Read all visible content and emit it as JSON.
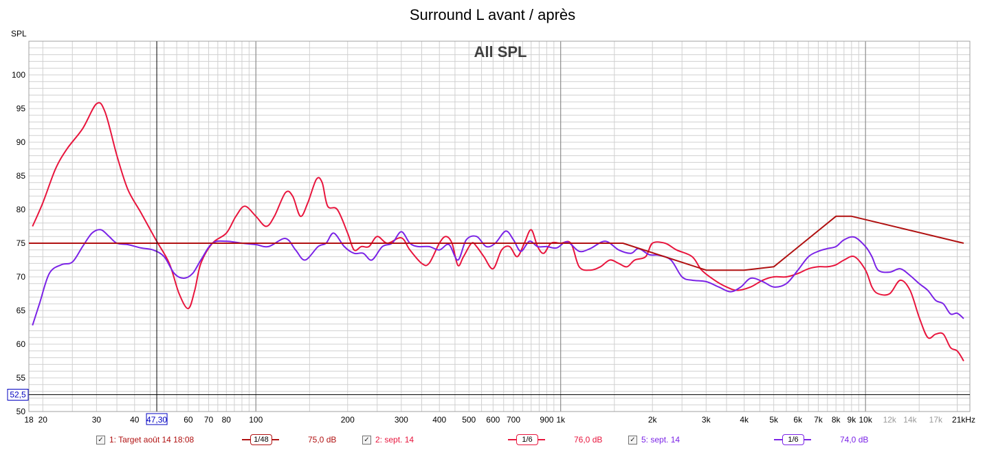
{
  "title": "Surround L avant / après",
  "colors": {
    "target": "#b01010",
    "sept14_red": "#e8143c",
    "sept14_purple": "#7a22e6",
    "grid_major": "#808080",
    "grid_minor": "#d0d0d0",
    "plot_border": "#a0a0a0",
    "cursor_label": "#0000c0"
  },
  "cursor": {
    "x_label": "47,30",
    "y_label": "52,5"
  },
  "legend": [
    {
      "checked": true,
      "label": "1: Target août 14 18:08",
      "smoothing": "1/48",
      "level": "75,0 dB",
      "color": "#b01010"
    },
    {
      "checked": true,
      "label": "2: sept. 14",
      "smoothing": "1/6",
      "level": "76,0 dB",
      "color": "#e8143c"
    },
    {
      "checked": true,
      "label": "5: sept. 14",
      "smoothing": "1/6",
      "level": "74,0 dB",
      "color": "#7a22e6"
    }
  ],
  "chart_data": {
    "type": "line",
    "title": "All SPL",
    "ylabel": "SPL",
    "xlabel": "",
    "x_scale": "log",
    "xlim": [
      18,
      22000
    ],
    "ylim": [
      50,
      105
    ],
    "grid": true,
    "y_ticks": [
      50,
      55,
      60,
      65,
      70,
      75,
      80,
      85,
      90,
      95,
      100
    ],
    "x_ticks": [
      {
        "v": 18,
        "label": "18",
        "minor": false
      },
      {
        "v": 20,
        "label": "20",
        "minor": false
      },
      {
        "v": 30,
        "label": "30",
        "minor": false
      },
      {
        "v": 40,
        "label": "40",
        "minor": false
      },
      {
        "v": 60,
        "label": "60",
        "minor": false
      },
      {
        "v": 70,
        "label": "70",
        "minor": false
      },
      {
        "v": 80,
        "label": "80",
        "minor": false
      },
      {
        "v": 100,
        "label": "100",
        "minor": false
      },
      {
        "v": 200,
        "label": "200",
        "minor": false
      },
      {
        "v": 300,
        "label": "300",
        "minor": false
      },
      {
        "v": 400,
        "label": "400",
        "minor": false
      },
      {
        "v": 500,
        "label": "500",
        "minor": false
      },
      {
        "v": 600,
        "label": "600",
        "minor": false
      },
      {
        "v": 700,
        "label": "700",
        "minor": false
      },
      {
        "v": 900,
        "label": "900",
        "minor": false
      },
      {
        "v": 1000,
        "label": "1k",
        "minor": false
      },
      {
        "v": 2000,
        "label": "2k",
        "minor": false
      },
      {
        "v": 3000,
        "label": "3k",
        "minor": false
      },
      {
        "v": 4000,
        "label": "4k",
        "minor": false
      },
      {
        "v": 5000,
        "label": "5k",
        "minor": false
      },
      {
        "v": 6000,
        "label": "6k",
        "minor": false
      },
      {
        "v": 7000,
        "label": "7k",
        "minor": false
      },
      {
        "v": 8000,
        "label": "8k",
        "minor": false
      },
      {
        "v": 9000,
        "label": "9k",
        "minor": false
      },
      {
        "v": 10000,
        "label": "10k",
        "minor": false
      },
      {
        "v": 12000,
        "label": "12k",
        "minor": true
      },
      {
        "v": 14000,
        "label": "14k",
        "minor": true
      },
      {
        "v": 17000,
        "label": "17k",
        "minor": true
      },
      {
        "v": 21000,
        "label": "21kHz",
        "minor": false
      }
    ],
    "series": [
      {
        "name": "1: Target août 14 18:08",
        "color": "#b01010",
        "points": [
          [
            18,
            75
          ],
          [
            1600,
            75
          ],
          [
            3000,
            71
          ],
          [
            4000,
            71
          ],
          [
            5000,
            71.5
          ],
          [
            8000,
            79
          ],
          [
            9000,
            79
          ],
          [
            21000,
            75
          ]
        ]
      },
      {
        "name": "2: sept. 14",
        "color": "#e8143c",
        "points": [
          [
            18.5,
            77.5
          ],
          [
            20,
            81
          ],
          [
            22,
            86
          ],
          [
            24,
            89
          ],
          [
            27,
            92
          ],
          [
            30,
            95.7
          ],
          [
            32,
            94.5
          ],
          [
            35,
            88
          ],
          [
            38,
            83
          ],
          [
            42,
            79.5
          ],
          [
            47,
            75.5
          ],
          [
            52,
            72
          ],
          [
            56,
            67.5
          ],
          [
            60,
            65.3
          ],
          [
            63,
            68
          ],
          [
            66,
            72
          ],
          [
            72,
            75
          ],
          [
            80,
            76.5
          ],
          [
            86,
            79
          ],
          [
            92,
            80.5
          ],
          [
            100,
            79
          ],
          [
            108,
            77.5
          ],
          [
            115,
            79
          ],
          [
            125,
            82.5
          ],
          [
            132,
            82
          ],
          [
            140,
            79
          ],
          [
            148,
            81
          ],
          [
            158,
            84.5
          ],
          [
            165,
            84
          ],
          [
            172,
            80.5
          ],
          [
            185,
            80
          ],
          [
            200,
            76.5
          ],
          [
            210,
            74
          ],
          [
            222,
            74.5
          ],
          [
            235,
            74.5
          ],
          [
            250,
            76
          ],
          [
            270,
            75
          ],
          [
            300,
            75.8
          ],
          [
            320,
            74
          ],
          [
            350,
            72
          ],
          [
            370,
            72
          ],
          [
            400,
            75
          ],
          [
            420,
            76
          ],
          [
            440,
            75
          ],
          [
            460,
            71.7
          ],
          [
            480,
            73
          ],
          [
            510,
            75
          ],
          [
            530,
            74.5
          ],
          [
            560,
            73
          ],
          [
            600,
            71.2
          ],
          [
            640,
            74
          ],
          [
            680,
            74.5
          ],
          [
            720,
            73
          ],
          [
            760,
            75
          ],
          [
            800,
            77
          ],
          [
            840,
            74.5
          ],
          [
            880,
            73.5
          ],
          [
            930,
            75
          ],
          [
            1000,
            75
          ],
          [
            1080,
            75
          ],
          [
            1150,
            71.5
          ],
          [
            1250,
            71
          ],
          [
            1350,
            71.5
          ],
          [
            1450,
            72.5
          ],
          [
            1550,
            72
          ],
          [
            1650,
            71.5
          ],
          [
            1750,
            72.5
          ],
          [
            1900,
            73
          ],
          [
            2000,
            75
          ],
          [
            2200,
            75
          ],
          [
            2400,
            74
          ],
          [
            2700,
            73
          ],
          [
            2900,
            71
          ],
          [
            3200,
            69.5
          ],
          [
            3500,
            68.5
          ],
          [
            3800,
            68
          ],
          [
            4200,
            68.5
          ],
          [
            4600,
            69.5
          ],
          [
            5000,
            70
          ],
          [
            5500,
            70
          ],
          [
            6000,
            70.5
          ],
          [
            6500,
            71.2
          ],
          [
            7000,
            71.5
          ],
          [
            7500,
            71.5
          ],
          [
            8000,
            71.8
          ],
          [
            8500,
            72.5
          ],
          [
            9200,
            73
          ],
          [
            10000,
            71
          ],
          [
            10500,
            68.5
          ],
          [
            11000,
            67.5
          ],
          [
            12000,
            67.5
          ],
          [
            13000,
            69.5
          ],
          [
            14000,
            68
          ],
          [
            15000,
            64
          ],
          [
            16000,
            61
          ],
          [
            17000,
            61.5
          ],
          [
            18000,
            61.5
          ],
          [
            19000,
            59.5
          ],
          [
            20000,
            59
          ],
          [
            21000,
            57.5
          ]
        ]
      },
      {
        "name": "5: sept. 14",
        "color": "#7a22e6",
        "points": [
          [
            18.5,
            62.8
          ],
          [
            19.5,
            66
          ],
          [
            21,
            70.5
          ],
          [
            23,
            71.8
          ],
          [
            25,
            72.2
          ],
          [
            27,
            74.5
          ],
          [
            29,
            76.5
          ],
          [
            31,
            77
          ],
          [
            33,
            76
          ],
          [
            35,
            75
          ],
          [
            38,
            74.8
          ],
          [
            42,
            74.3
          ],
          [
            46,
            74
          ],
          [
            50,
            73
          ],
          [
            54,
            70.5
          ],
          [
            58,
            69.8
          ],
          [
            62,
            70.5
          ],
          [
            66,
            72.5
          ],
          [
            72,
            75
          ],
          [
            80,
            75.3
          ],
          [
            90,
            75
          ],
          [
            100,
            74.8
          ],
          [
            110,
            74.5
          ],
          [
            125,
            75.7
          ],
          [
            135,
            74
          ],
          [
            145,
            72.5
          ],
          [
            160,
            74.5
          ],
          [
            170,
            75
          ],
          [
            180,
            76.5
          ],
          [
            195,
            74.5
          ],
          [
            210,
            73.5
          ],
          [
            225,
            73.5
          ],
          [
            240,
            72.5
          ],
          [
            260,
            74.5
          ],
          [
            280,
            75
          ],
          [
            300,
            76.7
          ],
          [
            320,
            75
          ],
          [
            340,
            74.5
          ],
          [
            370,
            74.5
          ],
          [
            400,
            74
          ],
          [
            430,
            74.8
          ],
          [
            460,
            72.5
          ],
          [
            490,
            75.5
          ],
          [
            530,
            76
          ],
          [
            570,
            74.5
          ],
          [
            610,
            75
          ],
          [
            660,
            76.8
          ],
          [
            700,
            75.5
          ],
          [
            740,
            73.8
          ],
          [
            790,
            75.3
          ],
          [
            840,
            74.5
          ],
          [
            900,
            74.5
          ],
          [
            970,
            74.3
          ],
          [
            1050,
            75.2
          ],
          [
            1150,
            73.8
          ],
          [
            1250,
            74.2
          ],
          [
            1400,
            75.3
          ],
          [
            1550,
            74
          ],
          [
            1700,
            73.5
          ],
          [
            1800,
            74.2
          ],
          [
            1950,
            73.3
          ],
          [
            2100,
            73.2
          ],
          [
            2300,
            72.5
          ],
          [
            2500,
            70
          ],
          [
            2700,
            69.5
          ],
          [
            3000,
            69.3
          ],
          [
            3300,
            68.5
          ],
          [
            3600,
            67.8
          ],
          [
            3900,
            68.5
          ],
          [
            4200,
            69.8
          ],
          [
            4600,
            69.3
          ],
          [
            5000,
            68.5
          ],
          [
            5500,
            69
          ],
          [
            6000,
            71
          ],
          [
            6500,
            73
          ],
          [
            7000,
            73.8
          ],
          [
            7500,
            74.2
          ],
          [
            8000,
            74.5
          ],
          [
            8500,
            75.5
          ],
          [
            9200,
            75.9
          ],
          [
            10000,
            74.5
          ],
          [
            10500,
            73
          ],
          [
            11000,
            71
          ],
          [
            12000,
            70.7
          ],
          [
            13000,
            71.2
          ],
          [
            14000,
            70.2
          ],
          [
            15000,
            69
          ],
          [
            16000,
            68
          ],
          [
            17000,
            66.5
          ],
          [
            18000,
            66
          ],
          [
            19000,
            64.5
          ],
          [
            20000,
            64.6
          ],
          [
            21000,
            63.8
          ]
        ]
      }
    ]
  }
}
